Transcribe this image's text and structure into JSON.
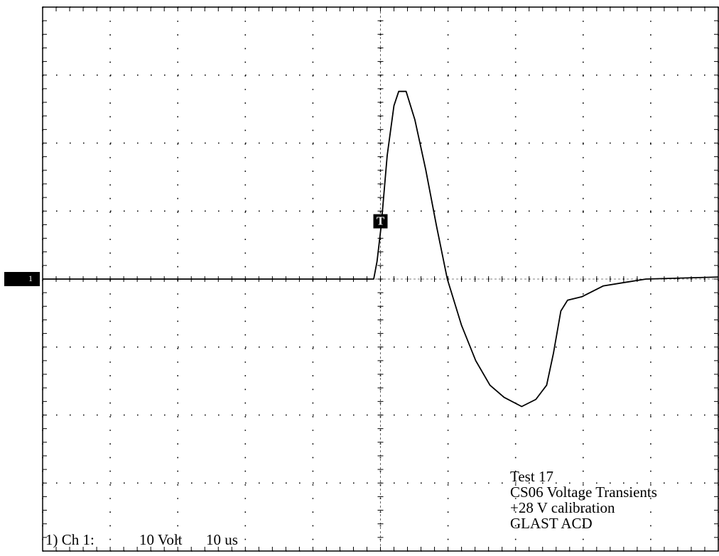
{
  "chart_data": {
    "type": "line",
    "channel_label": "1) Ch 1:",
    "volts_per_div": "10 Volt",
    "time_per_div": "10 us",
    "annotations": [
      "Test 17",
      "CS06 Voltage Transients",
      "+28 V calibration",
      "GLAST ACD"
    ],
    "ground_marker": {
      "label": "1",
      "level": 0
    },
    "trigger": {
      "label": "T",
      "x": 50,
      "level": 8.5
    },
    "xlim": [
      0,
      100
    ],
    "xticks": [
      0,
      10,
      20,
      30,
      40,
      50,
      60,
      70,
      80,
      90,
      100
    ],
    "ylim": [
      -40,
      40
    ],
    "yticks": [
      -40,
      -30,
      -20,
      -10,
      0,
      10,
      20,
      30,
      40
    ],
    "grid": true,
    "series": [
      {
        "color": "#000000",
        "x": [
          0,
          49,
          49.5,
          50.1,
          51,
          52,
          52.7,
          53.8,
          55.1,
          56.7,
          58.3,
          59.9,
          62,
          64.1,
          66.2,
          68.3,
          70.9,
          73,
          74.6,
          75.6,
          76.7,
          77.7,
          79.8,
          83,
          86.1,
          89.3,
          100
        ],
        "values": [
          0,
          0,
          2.6,
          7.8,
          18.2,
          25.5,
          27.6,
          27.6,
          23.4,
          16.1,
          7.8,
          0,
          -6.8,
          -12,
          -15.6,
          -17.4,
          -18.75,
          -17.7,
          -15.6,
          -10.9,
          -4.7,
          -3.1,
          -2.6,
          -1,
          -0.5,
          0,
          0.3
        ]
      }
    ]
  }
}
